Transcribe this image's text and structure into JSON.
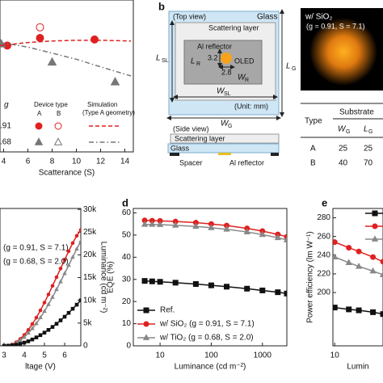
{
  "chart_data": [
    {
      "type": "scatter",
      "xlabel": "Scatterance (S)",
      "xlim": [
        3.7,
        14.7
      ],
      "xticks": [
        4,
        6,
        8,
        10,
        12,
        14
      ],
      "ylim": [
        0,
        100
      ],
      "series": [
        {
          "color": "#e02020",
          "marker": "circle",
          "filled": true,
          "x": [
            4.3,
            7,
            11.5
          ],
          "values": [
            70,
            75,
            74
          ]
        },
        {
          "color": "#e02020",
          "marker": "circle",
          "filled": false,
          "x": [
            7
          ],
          "values": [
            82
          ]
        },
        {
          "color": "#777777",
          "marker": "triangle",
          "filled": true,
          "x": [
            3.8,
            8,
            13.2
          ],
          "values": [
            71,
            59,
            46
          ]
        },
        {
          "color": "#e02020",
          "line_style": "dashed",
          "x": [
            3.7,
            6,
            8,
            10,
            12,
            14.5
          ],
          "values": [
            70,
            72,
            73,
            73.5,
            73.5,
            73
          ]
        },
        {
          "color": "#777777",
          "line_style": "dashdot",
          "x": [
            3.7,
            6,
            8,
            10,
            12,
            14.5
          ],
          "values": [
            72,
            69,
            65,
            61,
            56,
            50
          ]
        }
      ],
      "legend": {
        "headers": [
          "g",
          "Device type",
          "Simulation"
        ],
        "subheaders": [
          "A",
          "B",
          "(Type A geometry)"
        ],
        "g": [
          ".91",
          ".68"
        ]
      }
    },
    {
      "type": "line",
      "xlabel": "ltage (V)",
      "y2label": "Luminance (cd m⁻²)",
      "xlim": [
        2.8,
        6.8
      ],
      "xticks": [
        3,
        4,
        5,
        6
      ],
      "y2lim": [
        0,
        30200
      ],
      "y2ticks": [
        0,
        {
          "value": 5000,
          "label": "5k"
        },
        {
          "value": 10000,
          "label": "10k"
        },
        {
          "value": 15000,
          "label": "15k"
        },
        {
          "value": 20000,
          "label": "20k"
        },
        {
          "value": 25000,
          "label": "25k"
        },
        {
          "value": 30000,
          "label": "30k"
        }
      ],
      "x": [
        3.0,
        3.2,
        3.4,
        3.6,
        3.8,
        4.0,
        4.2,
        4.4,
        4.6,
        4.8,
        5.0,
        5.2,
        5.4,
        5.6,
        5.8,
        6.0,
        6.2,
        6.4,
        6.6,
        6.8
      ],
      "series": [
        {
          "name": "(g = 0.91, S = 7.1)",
          "color": "#e02020",
          "marker": "circle",
          "axis": "y2",
          "values": [
            0,
            50,
            300,
            800,
            1500,
            2400,
            3500,
            4800,
            6200,
            7800,
            9500,
            11300,
            13200,
            15100,
            17000,
            18900,
            20800,
            22600,
            24200,
            25500
          ]
        },
        {
          "name": "(g = 0.68, S = 2.0)",
          "color": "#888888",
          "marker": "triangle",
          "axis": "y2",
          "values": [
            0,
            40,
            250,
            650,
            1200,
            1900,
            2800,
            3800,
            4900,
            6200,
            7600,
            9100,
            10700,
            12400,
            14100,
            15900,
            17700,
            19500,
            21300,
            23000
          ]
        },
        {
          "color": "#111111",
          "marker": "square",
          "axis": "y2",
          "values": [
            0,
            20,
            100,
            250,
            450,
            700,
            1000,
            1400,
            1850,
            2350,
            2900,
            3500,
            4150,
            4850,
            5600,
            6400,
            7250,
            8150,
            9050,
            10000
          ]
        }
      ]
    },
    {
      "type": "line",
      "panel_label": "d",
      "xlabel": "Luminance (cd m⁻²)",
      "ylabel": "EQE (%)",
      "xlog": true,
      "xlim": [
        3,
        3000
      ],
      "xticks": [
        10,
        100,
        1000
      ],
      "ylim": [
        0,
        62
      ],
      "yticks": [
        0,
        10,
        20,
        30,
        40,
        50,
        60
      ],
      "legend": "lower-left",
      "x": [
        5,
        7,
        10,
        20,
        50,
        100,
        200,
        500,
        1000,
        2000,
        3000
      ],
      "series": [
        {
          "name": "Ref.",
          "color": "#111111",
          "marker": "square",
          "values": [
            29.3,
            29.1,
            28.9,
            28.5,
            27.9,
            27.3,
            26.7,
            25.8,
            25,
            24.2,
            23.6
          ]
        },
        {
          "name": "w/ SiO₂ (g = 0.91, S = 7.1)",
          "color": "#e02020",
          "marker": "circle",
          "values": [
            56.6,
            56.5,
            56.4,
            56.1,
            55.6,
            55.0,
            54.3,
            53.0,
            51.8,
            50.3,
            49.2
          ]
        },
        {
          "name": "w/ TiO₂ (g = 0.68, S = 2.0)",
          "color": "#888888",
          "marker": "triangle",
          "values": [
            54.8,
            54.8,
            54.7,
            54.4,
            53.9,
            53.3,
            52.6,
            51.4,
            50.2,
            48.8,
            47.8
          ]
        }
      ]
    },
    {
      "type": "line",
      "panel_label": "e",
      "xlabel": "Lumin",
      "ylabel": "Power efficiency (lm W⁻¹)",
      "xlog": true,
      "xlim": [
        9.5,
        40
      ],
      "xticks": [
        10
      ],
      "ylim": [
        143,
        290
      ],
      "yticks": [
        200,
        220,
        240,
        260,
        280
      ],
      "legend": "upper-right",
      "x": [
        8,
        10,
        15,
        20,
        30,
        40
      ],
      "series": [
        {
          "color": "#111111",
          "marker": "square",
          "values": [
            185,
            184,
            182,
            181,
            179,
            177
          ]
        },
        {
          "color": "#e02020",
          "marker": "circle",
          "values": [
            257,
            254,
            248,
            244,
            238,
            233
          ]
        },
        {
          "color": "#888888",
          "marker": "triangle",
          "values": [
            241,
            238,
            232,
            228,
            223,
            219
          ]
        }
      ]
    }
  ],
  "diagram": {
    "label": "b",
    "top_view": "(Top view)",
    "glass": "Glass",
    "scattering_layer": "Scattering layer",
    "al_reflector": "Al reflector",
    "oled": "OLED",
    "dim_lr": "3.2",
    "dim_wr": "2.8",
    "l_r": [
      "L",
      "R"
    ],
    "w_r": [
      "W",
      "R"
    ],
    "l_sl": [
      "L",
      "SL"
    ],
    "w_sl": [
      "W",
      "SL"
    ],
    "l_g": [
      "L",
      "G"
    ],
    "w_g": [
      "W",
      "G"
    ],
    "unit": "(Unit: mm)",
    "side_view": "(Side view)",
    "side_scattering_layer": "Scattering layer",
    "side_glass": "Glass",
    "spacer": "Spacer",
    "side_al_reflector": "Al reflector"
  },
  "photo": {
    "caption": [
      "w/ SiO₂",
      "(g = 0.91, S = 7.1)"
    ]
  },
  "table": {
    "header": [
      "Type",
      "Substrate"
    ],
    "subheader": [
      [
        "W",
        "G"
      ],
      [
        "L",
        "G"
      ]
    ],
    "rows": [
      [
        "A",
        "25",
        "25"
      ],
      [
        "B",
        "40",
        "70"
      ]
    ]
  }
}
